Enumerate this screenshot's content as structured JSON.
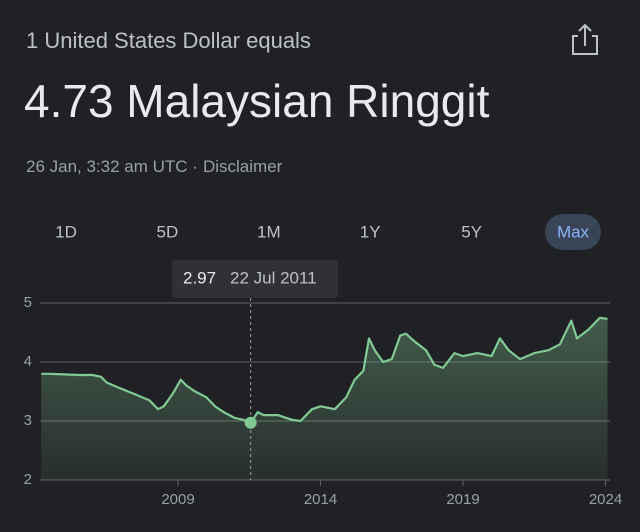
{
  "header": {
    "subtitle": "1 United States Dollar equals",
    "title": "4.73 Malaysian Ringgit",
    "timestamp": "26 Jan, 3:32 am UTC ·",
    "disclaimer": "Disclaimer"
  },
  "ranges": {
    "options": [
      "1D",
      "5D",
      "1M",
      "1Y",
      "5Y",
      "Max"
    ],
    "selected": "Max"
  },
  "chart_data": {
    "type": "area",
    "color": "#81c995",
    "x": [
      2004.2,
      2004.5,
      2005,
      2005.5,
      2006,
      2006.3,
      2006.5,
      2007,
      2007.5,
      2008,
      2008.3,
      2008.5,
      2008.8,
      2009.1,
      2009.3,
      2009.6,
      2010,
      2010.3,
      2010.6,
      2011,
      2011.3,
      2011.55,
      2011.8,
      2012,
      2012.5,
      2013,
      2013.3,
      2013.7,
      2014,
      2014.5,
      2014.9,
      2015.2,
      2015.5,
      2015.7,
      2015.9,
      2016.2,
      2016.5,
      2016.8,
      2017,
      2017.3,
      2017.7,
      2018,
      2018.3,
      2018.7,
      2019,
      2019.5,
      2020,
      2020.3,
      2020.6,
      2021,
      2021.5,
      2022,
      2022.4,
      2022.8,
      2023,
      2023.4,
      2023.8,
      2024.07
    ],
    "values": [
      3.8,
      3.8,
      3.79,
      3.78,
      3.78,
      3.75,
      3.65,
      3.55,
      3.45,
      3.35,
      3.2,
      3.25,
      3.45,
      3.7,
      3.6,
      3.5,
      3.4,
      3.25,
      3.15,
      3.05,
      3.02,
      2.97,
      3.15,
      3.1,
      3.1,
      3.02,
      3.0,
      3.2,
      3.25,
      3.2,
      3.4,
      3.7,
      3.85,
      4.4,
      4.2,
      4.0,
      4.05,
      4.45,
      4.48,
      4.35,
      4.2,
      3.95,
      3.9,
      4.15,
      4.1,
      4.15,
      4.1,
      4.4,
      4.2,
      4.05,
      4.15,
      4.2,
      4.3,
      4.7,
      4.4,
      4.55,
      4.75,
      4.73
    ],
    "xlim": [
      2004.2,
      2024.1
    ],
    "xticks": [
      2009,
      2014,
      2019,
      2024
    ],
    "ylim": [
      2,
      5
    ],
    "yticks": [
      2,
      3,
      4,
      5
    ],
    "grid": true,
    "tooltip": {
      "x": 2011.55,
      "value": 2.97,
      "date": "22 Jul 2011"
    }
  }
}
